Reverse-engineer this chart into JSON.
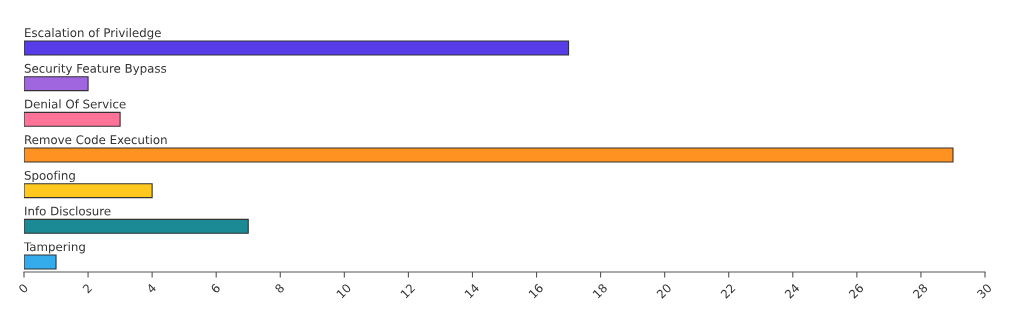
{
  "chart_data": {
    "type": "bar",
    "orientation": "horizontal",
    "categories": [
      "Escalation of Priviledge",
      "Security Feature Bypass",
      "Denial Of Service",
      "Remove Code Execution",
      "Spoofing",
      "Info Disclosure",
      "Tampering"
    ],
    "values": [
      17,
      2,
      3,
      29,
      4,
      7,
      1
    ],
    "colors": [
      "#573de8",
      "#a066e0",
      "#ff7398",
      "#ff9220",
      "#ffc81e",
      "#1b8a95",
      "#34acec"
    ],
    "xlim": [
      0,
      30
    ],
    "xticks": [
      0,
      2,
      4,
      6,
      8,
      10,
      12,
      14,
      16,
      18,
      20,
      22,
      24,
      26,
      28,
      30
    ],
    "grid": false,
    "legend": false
  }
}
